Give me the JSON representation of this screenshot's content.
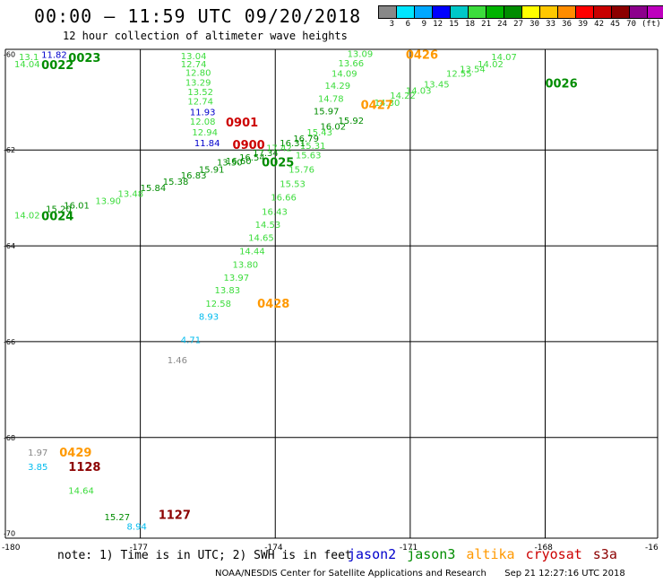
{
  "header": {
    "title": "00:00 – 11:59 UTC 09/20/2018",
    "subtitle": "12 hour collection of altimeter wave heights"
  },
  "legend": {
    "colors": [
      "#888888",
      "#00e6ff",
      "#00a8ff",
      "#0000ff",
      "#00c8c8",
      "#3cdc3c",
      "#00b400",
      "#008c00",
      "#ffff00",
      "#ffc800",
      "#ff8c00",
      "#ff0000",
      "#c80000",
      "#8c0000",
      "#8c008c",
      "#be00be",
      "#000000"
    ],
    "labels": [
      "3",
      "6",
      "9",
      "12",
      "15",
      "18",
      "21",
      "24",
      "27",
      "30",
      "33",
      "36",
      "39",
      "42",
      "45",
      "70"
    ],
    "unit": "(ft)"
  },
  "axes": {
    "x_ticks": [
      "-180",
      "-177",
      "-174",
      "-171",
      "-168",
      "-16"
    ],
    "y_ticks": [
      "-60",
      "-62",
      "-64",
      "-66",
      "-68",
      "-70"
    ]
  },
  "colors": {
    "jason2": "#0000cc",
    "jason3": "#008c00",
    "jason3_light": "#3cdc3c",
    "altika": "#ff9900",
    "cryosat": "#cc0000",
    "s3a": "#8c0000",
    "cyan": "#00bbee",
    "gray": "#888888"
  },
  "wave_labels": [
    {
      "t": "11.82",
      "lon": -179.2,
      "lat": -60.0,
      "c": "jason2"
    },
    {
      "t": "13.1",
      "lon": -179.7,
      "lat": -60.05,
      "c": "jason3_light"
    },
    {
      "t": "14.04",
      "lon": -179.8,
      "lat": -60.2,
      "c": "jason3_light"
    },
    {
      "t": "13.04",
      "lon": -176.1,
      "lat": -60.03,
      "c": "jason3_light"
    },
    {
      "t": "12.74",
      "lon": -176.1,
      "lat": -60.2,
      "c": "jason3_light"
    },
    {
      "t": "12.80",
      "lon": -176.0,
      "lat": -60.38,
      "c": "jason3_light"
    },
    {
      "t": "13.29",
      "lon": -176.0,
      "lat": -60.58,
      "c": "jason3_light"
    },
    {
      "t": "13.52",
      "lon": -175.95,
      "lat": -60.78,
      "c": "jason3_light"
    },
    {
      "t": "12.74",
      "lon": -175.95,
      "lat": -60.98,
      "c": "jason3_light"
    },
    {
      "t": "11.93",
      "lon": -175.9,
      "lat": -61.2,
      "c": "jason2"
    },
    {
      "t": "12.08",
      "lon": -175.9,
      "lat": -61.4,
      "c": "jason3_light"
    },
    {
      "t": "12.94",
      "lon": -175.85,
      "lat": -61.62,
      "c": "jason3_light"
    },
    {
      "t": "11.84",
      "lon": -175.8,
      "lat": -61.85,
      "c": "jason2"
    },
    {
      "t": "13.50",
      "lon": -175.3,
      "lat": -62.25,
      "c": "jason3"
    },
    {
      "t": "13.09",
      "lon": -172.4,
      "lat": -59.98,
      "c": "jason3_light"
    },
    {
      "t": "13.66",
      "lon": -172.6,
      "lat": -60.18,
      "c": "jason3_light"
    },
    {
      "t": "14.09",
      "lon": -172.75,
      "lat": -60.4,
      "c": "jason3_light"
    },
    {
      "t": "14.29",
      "lon": -172.9,
      "lat": -60.65,
      "c": "jason3_light"
    },
    {
      "t": "14.78",
      "lon": -173.05,
      "lat": -60.92,
      "c": "jason3_light"
    },
    {
      "t": "15.97",
      "lon": -173.15,
      "lat": -61.18,
      "c": "jason3"
    },
    {
      "t": "15.31",
      "lon": -173.45,
      "lat": -61.9,
      "c": "jason3_light"
    },
    {
      "t": "15.63",
      "lon": -173.55,
      "lat": -62.1,
      "c": "jason3_light"
    },
    {
      "t": "15.76",
      "lon": -173.7,
      "lat": -62.4,
      "c": "jason3_light"
    },
    {
      "t": "15.53",
      "lon": -173.9,
      "lat": -62.7,
      "c": "jason3_light"
    },
    {
      "t": "16.66",
      "lon": -174.1,
      "lat": -62.98,
      "c": "jason3_light"
    },
    {
      "t": "16.43",
      "lon": -174.3,
      "lat": -63.28,
      "c": "jason3_light"
    },
    {
      "t": "14.53",
      "lon": -174.45,
      "lat": -63.55,
      "c": "jason3_light"
    },
    {
      "t": "14.65",
      "lon": -174.6,
      "lat": -63.82,
      "c": "jason3_light"
    },
    {
      "t": "14.44",
      "lon": -174.8,
      "lat": -64.1,
      "c": "jason3_light"
    },
    {
      "t": "13.80",
      "lon": -174.95,
      "lat": -64.38,
      "c": "jason3_light"
    },
    {
      "t": "13.97",
      "lon": -175.15,
      "lat": -64.65,
      "c": "jason3_light"
    },
    {
      "t": "13.83",
      "lon": -175.35,
      "lat": -64.92,
      "c": "jason3_light"
    },
    {
      "t": "12.58",
      "lon": -175.55,
      "lat": -65.2,
      "c": "jason3_light"
    },
    {
      "t": "8.93",
      "lon": -175.7,
      "lat": -65.47,
      "c": "cyan"
    },
    {
      "t": "4.71",
      "lon": -176.1,
      "lat": -65.95,
      "c": "cyan"
    },
    {
      "t": "1.46",
      "lon": -176.4,
      "lat": -66.38,
      "c": "gray"
    },
    {
      "t": "14.07",
      "lon": -169.2,
      "lat": -60.05,
      "c": "jason3_light"
    },
    {
      "t": "14.02",
      "lon": -169.5,
      "lat": -60.2,
      "c": "jason3_light"
    },
    {
      "t": "13.54",
      "lon": -169.9,
      "lat": -60.3,
      "c": "jason3_light"
    },
    {
      "t": "12.55",
      "lon": -170.2,
      "lat": -60.4,
      "c": "jason3_light"
    },
    {
      "t": "13.45",
      "lon": -170.7,
      "lat": -60.62,
      "c": "jason3_light"
    },
    {
      "t": "14.03",
      "lon": -171.1,
      "lat": -60.75,
      "c": "jason3_light"
    },
    {
      "t": "14.22",
      "lon": -171.45,
      "lat": -60.85,
      "c": "jason3_light"
    },
    {
      "t": "14.30",
      "lon": -171.8,
      "lat": -61.0,
      "c": "jason3_light"
    },
    {
      "t": "15.92",
      "lon": -172.6,
      "lat": -61.38,
      "c": "jason3"
    },
    {
      "t": "16.02",
      "lon": -173.0,
      "lat": -61.5,
      "c": "jason3"
    },
    {
      "t": "15.43",
      "lon": -173.3,
      "lat": -61.62,
      "c": "jason3_light"
    },
    {
      "t": "16.79",
      "lon": -173.6,
      "lat": -61.75,
      "c": "jason3"
    },
    {
      "t": "16.31",
      "lon": -173.9,
      "lat": -61.85,
      "c": "jason3"
    },
    {
      "t": "17.42",
      "lon": -174.2,
      "lat": -61.95,
      "c": "jason3_light"
    },
    {
      "t": "17.34",
      "lon": -174.5,
      "lat": -62.05,
      "c": "jason3"
    },
    {
      "t": "16.54",
      "lon": -174.8,
      "lat": -62.15,
      "c": "jason3"
    },
    {
      "t": "16.60",
      "lon": -175.1,
      "lat": -62.22,
      "c": "jason3"
    },
    {
      "t": "15.91",
      "lon": -175.7,
      "lat": -62.4,
      "c": "jason3"
    },
    {
      "t": "16.83",
      "lon": -176.1,
      "lat": -62.52,
      "c": "jason3"
    },
    {
      "t": "15.38",
      "lon": -176.5,
      "lat": -62.65,
      "c": "jason3"
    },
    {
      "t": "15.84",
      "lon": -177.0,
      "lat": -62.78,
      "c": "jason3"
    },
    {
      "t": "13.48",
      "lon": -177.5,
      "lat": -62.9,
      "c": "jason3_light"
    },
    {
      "t": "13.90",
      "lon": -178.0,
      "lat": -63.05,
      "c": "jason3_light"
    },
    {
      "t": "16.01",
      "lon": -178.7,
      "lat": -63.15,
      "c": "jason3"
    },
    {
      "t": "15.20",
      "lon": -179.1,
      "lat": -63.22,
      "c": "jason3"
    },
    {
      "t": "14.02",
      "lon": -179.8,
      "lat": -63.35,
      "c": "jason3_light"
    },
    {
      "t": "1.97",
      "lon": -179.5,
      "lat": -68.3,
      "c": "gray"
    },
    {
      "t": "3.85",
      "lon": -179.5,
      "lat": -68.6,
      "c": "cyan"
    },
    {
      "t": "14.64",
      "lon": -178.6,
      "lat": -69.1,
      "c": "jason3_light"
    },
    {
      "t": "15.27",
      "lon": -177.8,
      "lat": -69.65,
      "c": "jason3"
    },
    {
      "t": "8.94",
      "lon": -177.3,
      "lat": -69.85,
      "c": "cyan"
    }
  ],
  "time_labels": [
    {
      "t": "0023",
      "lon": -178.6,
      "lat": -60.07,
      "c": "jason3"
    },
    {
      "t": "0022",
      "lon": -179.2,
      "lat": -60.22,
      "c": "jason3"
    },
    {
      "t": "0901",
      "lon": -175.1,
      "lat": -61.42,
      "c": "cryosat"
    },
    {
      "t": "0900",
      "lon": -174.95,
      "lat": -61.88,
      "c": "cryosat"
    },
    {
      "t": "0025",
      "lon": -174.3,
      "lat": -62.25,
      "c": "jason3"
    },
    {
      "t": "0024",
      "lon": -179.2,
      "lat": -63.37,
      "c": "jason3"
    },
    {
      "t": "0426",
      "lon": -171.1,
      "lat": -60.0,
      "c": "altika"
    },
    {
      "t": "0427",
      "lon": -172.1,
      "lat": -61.05,
      "c": "altika"
    },
    {
      "t": "0026",
      "lon": -168.0,
      "lat": -60.6,
      "c": "jason3"
    },
    {
      "t": "0428",
      "lon": -174.4,
      "lat": -65.2,
      "c": "altika"
    },
    {
      "t": "0429",
      "lon": -178.8,
      "lat": -68.3,
      "c": "altika"
    },
    {
      "t": "1128",
      "lon": -178.6,
      "lat": -68.6,
      "c": "s3a"
    },
    {
      "t": "1127",
      "lon": -176.6,
      "lat": -69.6,
      "c": "s3a"
    }
  ],
  "footer": {
    "note": "note: 1) Time is in UTC; 2) SWH is in feet",
    "satellites": [
      {
        "name": "jason2",
        "color": "#0000cc"
      },
      {
        "name": "jason3",
        "color": "#008c00"
      },
      {
        "name": "altika",
        "color": "#ff9900"
      },
      {
        "name": "cryosat",
        "color": "#cc0000"
      },
      {
        "name": "s3a",
        "color": "#8c0000"
      }
    ],
    "credit": "NOAA/NESDIS Center for Satellite Applications and Research",
    "timestamp": "Sep 21 12:27:16 UTC 2018"
  }
}
